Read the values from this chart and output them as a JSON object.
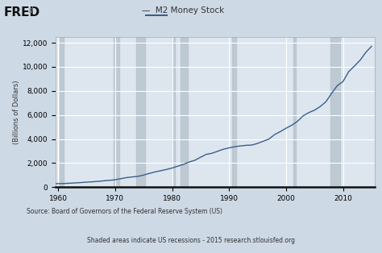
{
  "title": "M2 Money Stock",
  "ylabel": "(Billions of Dollars)",
  "xlim": [
    1959.5,
    2015.5
  ],
  "ylim": [
    0,
    12500
  ],
  "yticks": [
    0,
    2000,
    4000,
    6000,
    8000,
    10000,
    12000
  ],
  "xticks": [
    1960,
    1970,
    1980,
    1990,
    2000,
    2010
  ],
  "line_color": "#3a5e8c",
  "background_color": "#cdd9e5",
  "plot_bg_color": "#dde6ef",
  "grid_color": "#ffffff",
  "recession_color": "#b8c4ce",
  "recession_alpha": 0.85,
  "source_text": "Source: Board of Governors of the Federal Reserve System (US)",
  "shaded_text": "Shaded areas indicate US recessions - 2015 research.stlouisfed.org",
  "recessions": [
    [
      1960.25,
      1961.0
    ],
    [
      1969.75,
      1970.75
    ],
    [
      1973.75,
      1975.25
    ],
    [
      1980.0,
      1980.5
    ],
    [
      1981.5,
      1982.75
    ],
    [
      1990.5,
      1991.25
    ],
    [
      2001.25,
      2001.75
    ],
    [
      2007.75,
      2009.5
    ]
  ],
  "years": [
    1959,
    1960,
    1961,
    1962,
    1963,
    1964,
    1965,
    1966,
    1967,
    1968,
    1969,
    1970,
    1971,
    1972,
    1973,
    1974,
    1975,
    1976,
    1977,
    1978,
    1979,
    1980,
    1981,
    1982,
    1983,
    1984,
    1985,
    1986,
    1987,
    1988,
    1989,
    1990,
    1991,
    1992,
    1993,
    1994,
    1995,
    1996,
    1997,
    1998,
    1999,
    2000,
    2001,
    2002,
    2003,
    2004,
    2005,
    2006,
    2007,
    2008,
    2009,
    2010,
    2011,
    2012,
    2013,
    2014,
    2015
  ],
  "values": [
    286,
    300,
    310,
    332,
    358,
    388,
    421,
    450,
    487,
    535,
    572,
    621,
    710,
    800,
    855,
    904,
    1010,
    1150,
    1270,
    1370,
    1474,
    1595,
    1750,
    1900,
    2100,
    2240,
    2495,
    2730,
    2820,
    2990,
    3155,
    3270,
    3366,
    3430,
    3480,
    3500,
    3640,
    3820,
    4000,
    4380,
    4620,
    4900,
    5150,
    5470,
    5930,
    6200,
    6400,
    6700,
    7100,
    7800,
    8440,
    8780,
    9600,
    10060,
    10550,
    11200,
    11700
  ]
}
